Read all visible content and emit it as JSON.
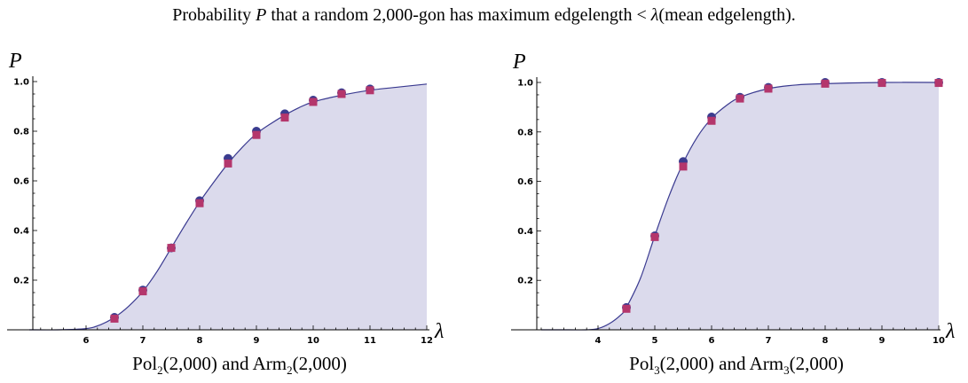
{
  "title": {
    "prefix": "Probability ",
    "symbol": "P",
    "middle": " that a random 2,000-gon has maximum edgelength < ",
    "lambda": "λ",
    "suffix": "(mean edgelength)."
  },
  "colors": {
    "fill": "#dbdaec",
    "curve": "#3a3a90",
    "pol_marker": "#3b3c8f",
    "arm_marker": "#b4366c",
    "axis": "#000000"
  },
  "chart_data": [
    {
      "type": "scatter",
      "caption": "Pol₂(2,000) and Arm₂(2,000)",
      "ylabel": "P",
      "xlabel": "λ",
      "xlim": [
        5,
        12
      ],
      "ylim": [
        0,
        1.0
      ],
      "xticks": [
        6,
        7,
        8,
        9,
        10,
        11,
        12
      ],
      "xminor_step": 0.2,
      "yticks": [
        0.2,
        0.4,
        0.6,
        0.8,
        1.0
      ],
      "curve": {
        "x": [
          5.0,
          5.5,
          6.0,
          6.25,
          6.5,
          6.75,
          7.0,
          7.25,
          7.5,
          7.75,
          8.0,
          8.25,
          8.5,
          8.75,
          9.0,
          9.25,
          9.5,
          9.75,
          10.0,
          10.5,
          11.0,
          11.5,
          12.0
        ],
        "y": [
          0.0,
          0.0,
          0.005,
          0.02,
          0.05,
          0.095,
          0.155,
          0.235,
          0.33,
          0.425,
          0.515,
          0.595,
          0.67,
          0.735,
          0.79,
          0.83,
          0.865,
          0.895,
          0.918,
          0.945,
          0.965,
          0.978,
          0.99
        ]
      },
      "series": [
        {
          "name": "Pol",
          "marker": "circle",
          "x": [
            6.5,
            7.0,
            7.5,
            8.0,
            8.5,
            9.0,
            9.5,
            10.0,
            10.5,
            11.0
          ],
          "y": [
            0.05,
            0.16,
            0.33,
            0.52,
            0.69,
            0.8,
            0.87,
            0.925,
            0.955,
            0.97
          ]
        },
        {
          "name": "Arm",
          "marker": "square",
          "x": [
            6.5,
            7.0,
            7.5,
            8.0,
            8.5,
            9.0,
            9.5,
            10.0,
            10.5,
            11.0
          ],
          "y": [
            0.045,
            0.155,
            0.33,
            0.51,
            0.67,
            0.785,
            0.855,
            0.918,
            0.95,
            0.965
          ]
        }
      ]
    },
    {
      "type": "scatter",
      "caption": "Pol₃(2,000) and Arm₃(2,000)",
      "ylabel": "P",
      "xlabel": "λ",
      "xlim": [
        3,
        10
      ],
      "ylim": [
        0,
        1.0
      ],
      "xticks": [
        4,
        5,
        6,
        7,
        8,
        9,
        10
      ],
      "xminor_step": 0.2,
      "yticks": [
        0.2,
        0.4,
        0.6,
        0.8,
        1.0
      ],
      "curve": {
        "x": [
          3.0,
          3.5,
          3.8,
          4.0,
          4.2,
          4.4,
          4.5,
          4.75,
          5.0,
          5.25,
          5.5,
          5.75,
          6.0,
          6.25,
          6.5,
          7.0,
          7.5,
          8.0,
          9.0,
          10.0
        ],
        "y": [
          0.0,
          0.0,
          0.0,
          0.005,
          0.025,
          0.06,
          0.09,
          0.21,
          0.38,
          0.54,
          0.675,
          0.78,
          0.855,
          0.905,
          0.94,
          0.975,
          0.99,
          0.995,
          1.0,
          1.0
        ]
      },
      "series": [
        {
          "name": "Pol",
          "marker": "circle",
          "x": [
            4.5,
            5.0,
            5.5,
            6.0,
            6.5,
            7.0,
            8.0,
            9.0,
            10.0
          ],
          "y": [
            0.09,
            0.38,
            0.68,
            0.86,
            0.94,
            0.98,
            1.0,
            1.0,
            1.0
          ]
        },
        {
          "name": "Arm",
          "marker": "square",
          "x": [
            4.5,
            5.0,
            5.5,
            6.0,
            6.5,
            7.0,
            8.0,
            9.0,
            10.0
          ],
          "y": [
            0.085,
            0.375,
            0.66,
            0.845,
            0.935,
            0.975,
            0.995,
            0.998,
            0.998
          ]
        }
      ]
    }
  ],
  "captions": {
    "left": {
      "base": "Pol",
      "sub": "2",
      "mid": "(2,000) and Arm",
      "sub2": "2",
      "end": "(2,000)"
    },
    "right": {
      "base": "Pol",
      "sub": "3",
      "mid": "(2,000) and Arm",
      "sub2": "3",
      "end": "(2,000)"
    }
  }
}
